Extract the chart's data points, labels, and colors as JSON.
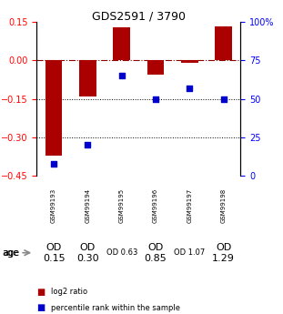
{
  "title": "GDS2591 / 3790",
  "samples": [
    "GSM99193",
    "GSM99194",
    "GSM99195",
    "GSM99196",
    "GSM99197",
    "GSM99198"
  ],
  "log2_ratio": [
    -0.37,
    -0.14,
    0.13,
    -0.055,
    -0.01,
    0.133
  ],
  "percentile_rank": [
    8,
    20,
    65,
    50,
    57,
    50
  ],
  "od_labels": [
    "OD\n0.15",
    "OD\n0.30",
    "OD 0.63",
    "OD\n0.85",
    "OD 1.07",
    "OD\n1.29"
  ],
  "od_fontsize": [
    8,
    8,
    6,
    8,
    6,
    8
  ],
  "cell_colors": [
    "#d0d0d0",
    "#d0d0d0",
    "#c8f0c8",
    "#b0e8b0",
    "#80d880",
    "#40c840"
  ],
  "sample_row_color": "#c0c0c0",
  "ylim_left": [
    -0.45,
    0.15
  ],
  "ylim_right": [
    0,
    100
  ],
  "yticks_left": [
    0.15,
    0.0,
    -0.15,
    -0.3,
    -0.45
  ],
  "yticks_right": [
    100,
    75,
    50,
    25,
    0
  ],
  "hlines_dotted": [
    -0.15,
    -0.3
  ],
  "bar_color": "#aa0000",
  "dot_color": "#0000cc",
  "bar_width": 0.5,
  "legend_red_label": "log2 ratio",
  "legend_blue_label": "percentile rank within the sample",
  "age_label": "age",
  "background_color": "#ffffff",
  "title_fontsize": 9,
  "tick_fontsize": 7,
  "sample_fontsize": 5,
  "legend_fontsize": 6
}
